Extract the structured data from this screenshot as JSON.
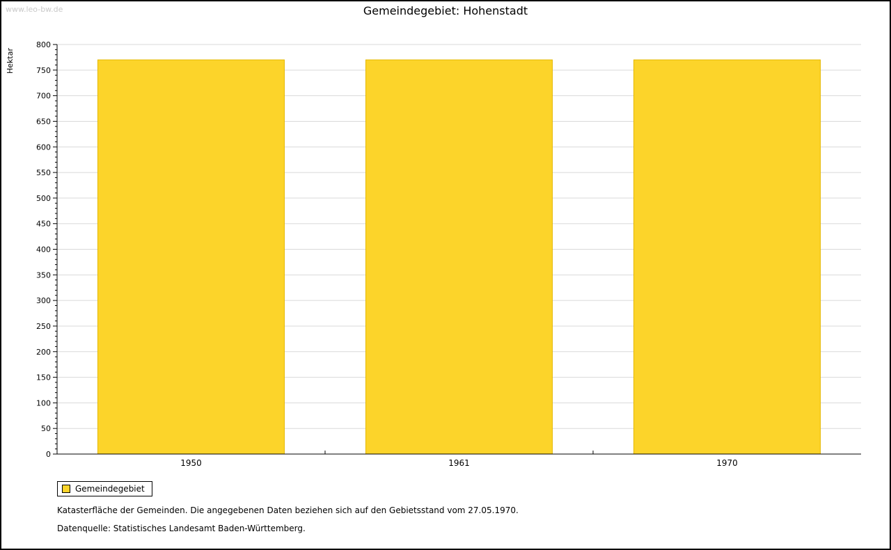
{
  "watermark": "www.leo-bw.de",
  "title": "Gemeindegebiet: Hohenstadt",
  "chart_data": {
    "type": "bar",
    "title": "Gemeindegebiet: Hohenstadt",
    "categories": [
      "1950",
      "1961",
      "1970"
    ],
    "series": [
      {
        "name": "Gemeindegebiet",
        "values": [
          770,
          770,
          770
        ]
      }
    ],
    "xlabel": "",
    "ylabel": "Hektar",
    "ylim": [
      0,
      800
    ],
    "y_major_step": 50,
    "y_minor_step": 10,
    "grid": true,
    "gridline_color": "#d9d9d9",
    "bar_color": "#FCD42A",
    "bar_border_color": "#e5b800",
    "legend_position": "bottom-left"
  },
  "legend": {
    "items": [
      {
        "label": "Gemeindegebiet",
        "color": "#FCD42A"
      }
    ]
  },
  "footnotes": [
    "Katasterfläche der Gemeinden. Die angegebenen Daten beziehen sich auf den Gebietsstand vom 27.05.1970.",
    "Datenquelle: Statistisches Landesamt Baden-Württemberg."
  ]
}
